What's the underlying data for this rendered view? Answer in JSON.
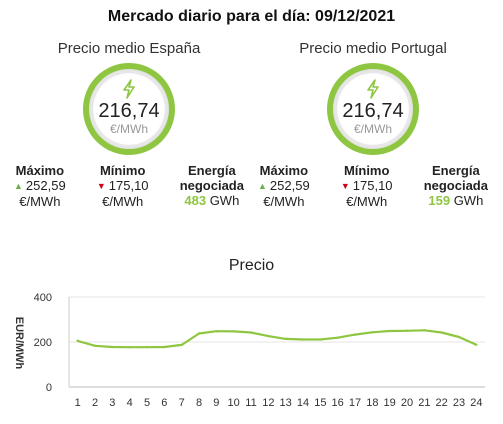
{
  "title": "Mercado diario para el día: 09/12/2021",
  "colors": {
    "accent": "#8ec641",
    "up": "#6ab04c",
    "down": "#d0021b"
  },
  "spain": {
    "heading": "Precio medio España",
    "price": "216,74",
    "unit": "€/MWh",
    "max_label": "Máximo",
    "max_value": "252,59",
    "max_unit": "€/MWh",
    "min_label": "Mínimo",
    "min_value": "175,10",
    "min_unit": "€/MWh",
    "energy_label_1": "Energía",
    "energy_label_2": "negociada",
    "energy_value": "483",
    "energy_unit": "GWh"
  },
  "portugal": {
    "heading": "Precio medio Portugal",
    "price": "216,74",
    "unit": "€/MWh",
    "max_label": "Máximo",
    "max_value": "252,59",
    "max_unit": "€/MWh",
    "min_label": "Mínimo",
    "min_value": "175,10",
    "min_unit": "€/MWh",
    "energy_label_1": "Energía",
    "energy_label_2": "negociada",
    "energy_value": "159",
    "energy_unit": "GWh"
  },
  "chart_data": {
    "type": "line",
    "title": "Precio",
    "ylabel": "EUR/MWh",
    "xlabel": "",
    "x": [
      1,
      2,
      3,
      4,
      5,
      6,
      7,
      8,
      9,
      10,
      11,
      12,
      13,
      14,
      15,
      16,
      17,
      18,
      19,
      20,
      21,
      22,
      23,
      24
    ],
    "series": [
      {
        "values": [
          205,
          183,
          178,
          177,
          177,
          178,
          187,
          238,
          248,
          247,
          242,
          226,
          214,
          211,
          211,
          219,
          233,
          243,
          249,
          250,
          252,
          242,
          222,
          188
        ]
      }
    ],
    "ylim": [
      0,
      400
    ],
    "yticks": [
      0,
      200,
      400
    ],
    "grid": true,
    "line_color": "#8ec641"
  }
}
